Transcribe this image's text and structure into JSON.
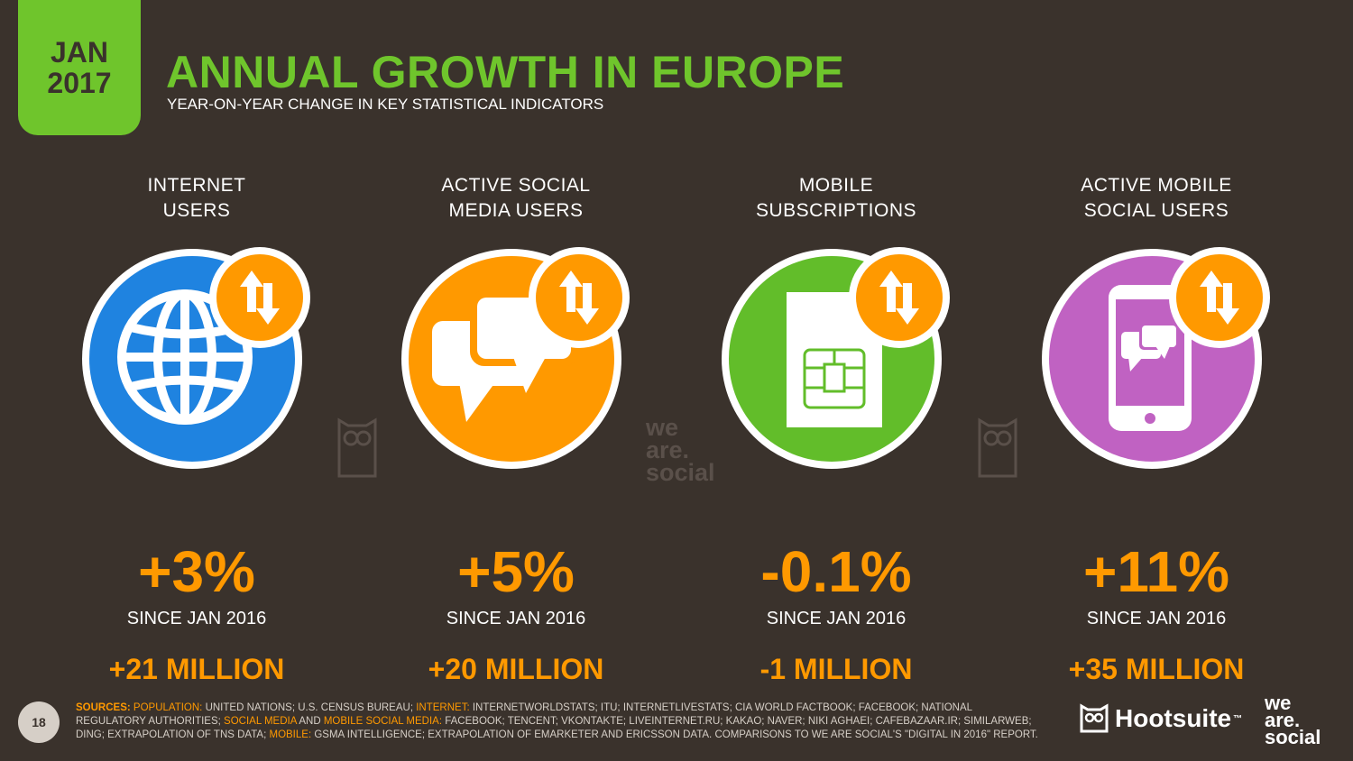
{
  "badge": {
    "month": "JAN",
    "year": "2017"
  },
  "header": {
    "title": "ANNUAL GROWTH IN EUROPE",
    "subtitle": "YEAR-ON-YEAR CHANGE IN KEY STATISTICAL INDICATORS"
  },
  "indicators": [
    {
      "label_line1": "INTERNET",
      "label_line2": "USERS",
      "percent": "+3%",
      "since": "SINCE JAN 2016",
      "absolute": "+21 MILLION",
      "icon": "globe-icon",
      "color": "#1f83e0"
    },
    {
      "label_line1": "ACTIVE SOCIAL",
      "label_line2": "MEDIA USERS",
      "percent": "+5%",
      "since": "SINCE JAN 2016",
      "absolute": "+20 MILLION",
      "icon": "chat-bubbles-icon",
      "color": "#ff9900"
    },
    {
      "label_line1": "MOBILE",
      "label_line2": "SUBSCRIPTIONS",
      "percent": "-0.1%",
      "since": "SINCE JAN 2016",
      "absolute": "-1 MILLION",
      "icon": "sim-card-icon",
      "color": "#62bd2a"
    },
    {
      "label_line1": "ACTIVE MOBILE",
      "label_line2": "SOCIAL USERS",
      "percent": "+11%",
      "since": "SINCE JAN 2016",
      "absolute": "+35 MILLION",
      "icon": "smartphone-chat-icon",
      "color": "#c062c2"
    }
  ],
  "growth_icon": "up-down-arrows-icon",
  "accent": "#ff9900",
  "watermark": {
    "line1": "we",
    "line2": "are.",
    "line3": "social"
  },
  "footer": {
    "page_number": "18",
    "sources_label": "SOURCES:",
    "pop_label": "POPULATION:",
    "pop_text": " UNITED NATIONS; U.S. CENSUS BUREAU; ",
    "internet_label": "INTERNET:",
    "internet_text": " INTERNETWORLDSTATS; ITU; INTERNETLIVESTATS; CIA WORLD FACTBOOK; FACEBOOK; NATIONAL REGULATORY AUTHORITIES; ",
    "sm_label": "SOCIAL MEDIA",
    "and_text": " AND ",
    "msm_label": "MOBILE SOCIAL MEDIA:",
    "sm_text": " FACEBOOK; TENCENT; VKONTAKTE; LIVEINTERNET.RU; KAKAO; NAVER; NIKI AGHAEI; CAFEBAZAAR.IR; SIMILARWEB; DING; EXTRAPOLATION OF TNS DATA; ",
    "mobile_label": "MOBILE:",
    "mobile_text": " GSMA INTELLIGENCE; EXTRAPOLATION OF EMARKETER AND ERICSSON DATA. COMPARISONS TO WE ARE SOCIAL'S \"DIGITAL IN 2016\" REPORT.",
    "hootsuite": "Hootsuite",
    "tm": "™",
    "was_line1": "we",
    "was_line2": "are.",
    "was_line3": "social"
  }
}
